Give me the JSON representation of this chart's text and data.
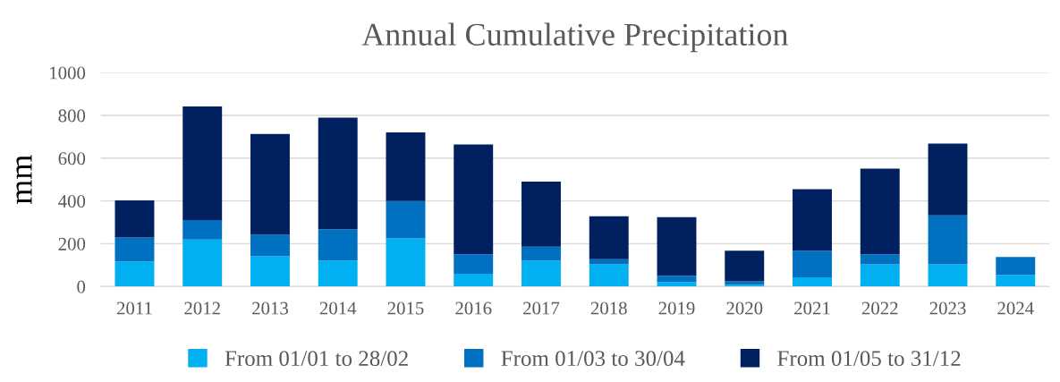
{
  "chart_data": {
    "type": "bar",
    "title": "Annual Cumulative Precipitation",
    "ylabel": "mm",
    "categories": [
      "2011",
      "2012",
      "2013",
      "2014",
      "2015",
      "2016",
      "2017",
      "2018",
      "2019",
      "2020",
      "2021",
      "2022",
      "2023",
      "2024"
    ],
    "stacked": true,
    "series": [
      {
        "name": "From 01/01 to 28/02",
        "color": "#00b0f0",
        "values": [
          117,
          220,
          142,
          121,
          225,
          60,
          121,
          103,
          21,
          8,
          43,
          103,
          103,
          54
        ]
      },
      {
        "name": "From 01/03 to 30/04",
        "color": "#0070c0",
        "values": [
          112,
          91,
          101,
          147,
          174,
          91,
          65,
          25,
          29,
          16,
          124,
          48,
          229,
          84
        ]
      },
      {
        "name": "From 01/05 to 31/12",
        "color": "#002060",
        "values": [
          173,
          531,
          470,
          521,
          321,
          513,
          304,
          200,
          274,
          143,
          288,
          400,
          336,
          0
        ]
      }
    ],
    "ylim": [
      0,
      1000
    ],
    "yticks": [
      0,
      200,
      400,
      600,
      800,
      1000
    ],
    "grid": "y",
    "legend": "bottom"
  }
}
